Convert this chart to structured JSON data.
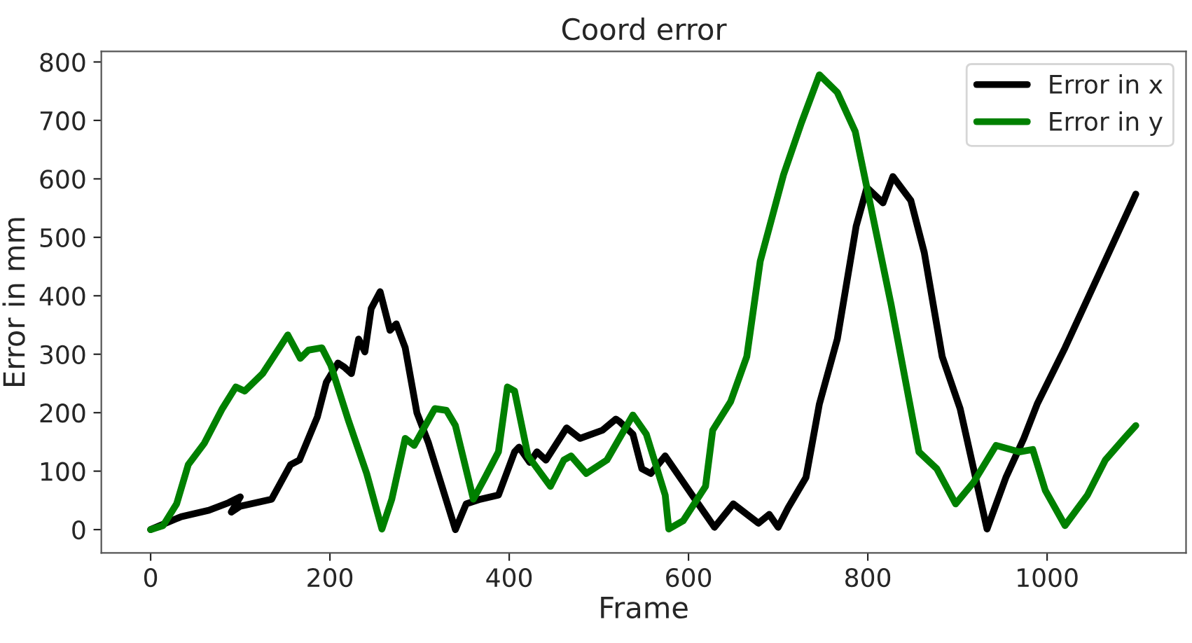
{
  "chart_data": {
    "type": "line",
    "title": "Coord error",
    "xlabel": "Frame",
    "ylabel": "Error in mm",
    "xlim": [
      -55,
      1155
    ],
    "ylim": [
      -40,
      818
    ],
    "xticks": [
      0,
      200,
      400,
      600,
      800,
      1000
    ],
    "yticks": [
      0,
      100,
      200,
      300,
      400,
      500,
      600,
      700,
      800
    ],
    "grid": false,
    "legend": "top right",
    "line_style": "solid",
    "marker": "none",
    "series": [
      {
        "name": "Error in x",
        "color": "#000000",
        "x": [
          0,
          34,
          65,
          87,
          100,
          90,
          100,
          135,
          156,
          166,
          186,
          196,
          209,
          216,
          224,
          232,
          239,
          246,
          256,
          267,
          274,
          284,
          297,
          310,
          340,
          352,
          368,
          388,
          406,
          411,
          423,
          431,
          441,
          464,
          479,
          504,
          519,
          523,
          538,
          548,
          558,
          574,
          604,
          629,
          650,
          678,
          690,
          700,
          711,
          731,
          746,
          766,
          787,
          799,
          817,
          828,
          848,
          863,
          883,
          903,
          933,
          954,
          974,
          989,
          1020,
          1060,
          1099
        ],
        "values": [
          0,
          22,
          33,
          46,
          56,
          30,
          40,
          52,
          111,
          119,
          193,
          252,
          285,
          278,
          267,
          326,
          304,
          378,
          407,
          341,
          352,
          311,
          200,
          148,
          0,
          44,
          52,
          59,
          133,
          141,
          115,
          133,
          119,
          174,
          156,
          170,
          189,
          185,
          163,
          104,
          96,
          126,
          59,
          4,
          44,
          11,
          26,
          4,
          37,
          89,
          215,
          326,
          519,
          585,
          559,
          604,
          563,
          474,
          296,
          207,
          1,
          89,
          156,
          215,
          311,
          444,
          574
        ]
      },
      {
        "name": "Error in y",
        "color": "#008000",
        "x": [
          0,
          14,
          29,
          42,
          60,
          80,
          95,
          105,
          125,
          153,
          167,
          176,
          191,
          201,
          221,
          241,
          258,
          269,
          284,
          294,
          317,
          330,
          340,
          360,
          373,
          388,
          398,
          406,
          421,
          446,
          461,
          469,
          486,
          509,
          538,
          553,
          574,
          578,
          594,
          619,
          627,
          647,
          665,
          680,
          706,
          726,
          746,
          766,
          786,
          826,
          857,
          877,
          898,
          918,
          943,
          969,
          984,
          998,
          1020,
          1045,
          1065,
          1086,
          1099
        ],
        "values": [
          0,
          7,
          44,
          111,
          148,
          207,
          244,
          237,
          267,
          333,
          293,
          307,
          311,
          281,
          185,
          96,
          1,
          52,
          156,
          144,
          207,
          204,
          178,
          52,
          89,
          133,
          244,
          237,
          126,
          74,
          119,
          126,
          96,
          119,
          196,
          163,
          59,
          1,
          15,
          74,
          170,
          219,
          296,
          459,
          607,
          696,
          778,
          748,
          681,
          385,
          133,
          104,
          44,
          81,
          144,
          133,
          137,
          67,
          7,
          59,
          119,
          156,
          178
        ]
      }
    ]
  }
}
